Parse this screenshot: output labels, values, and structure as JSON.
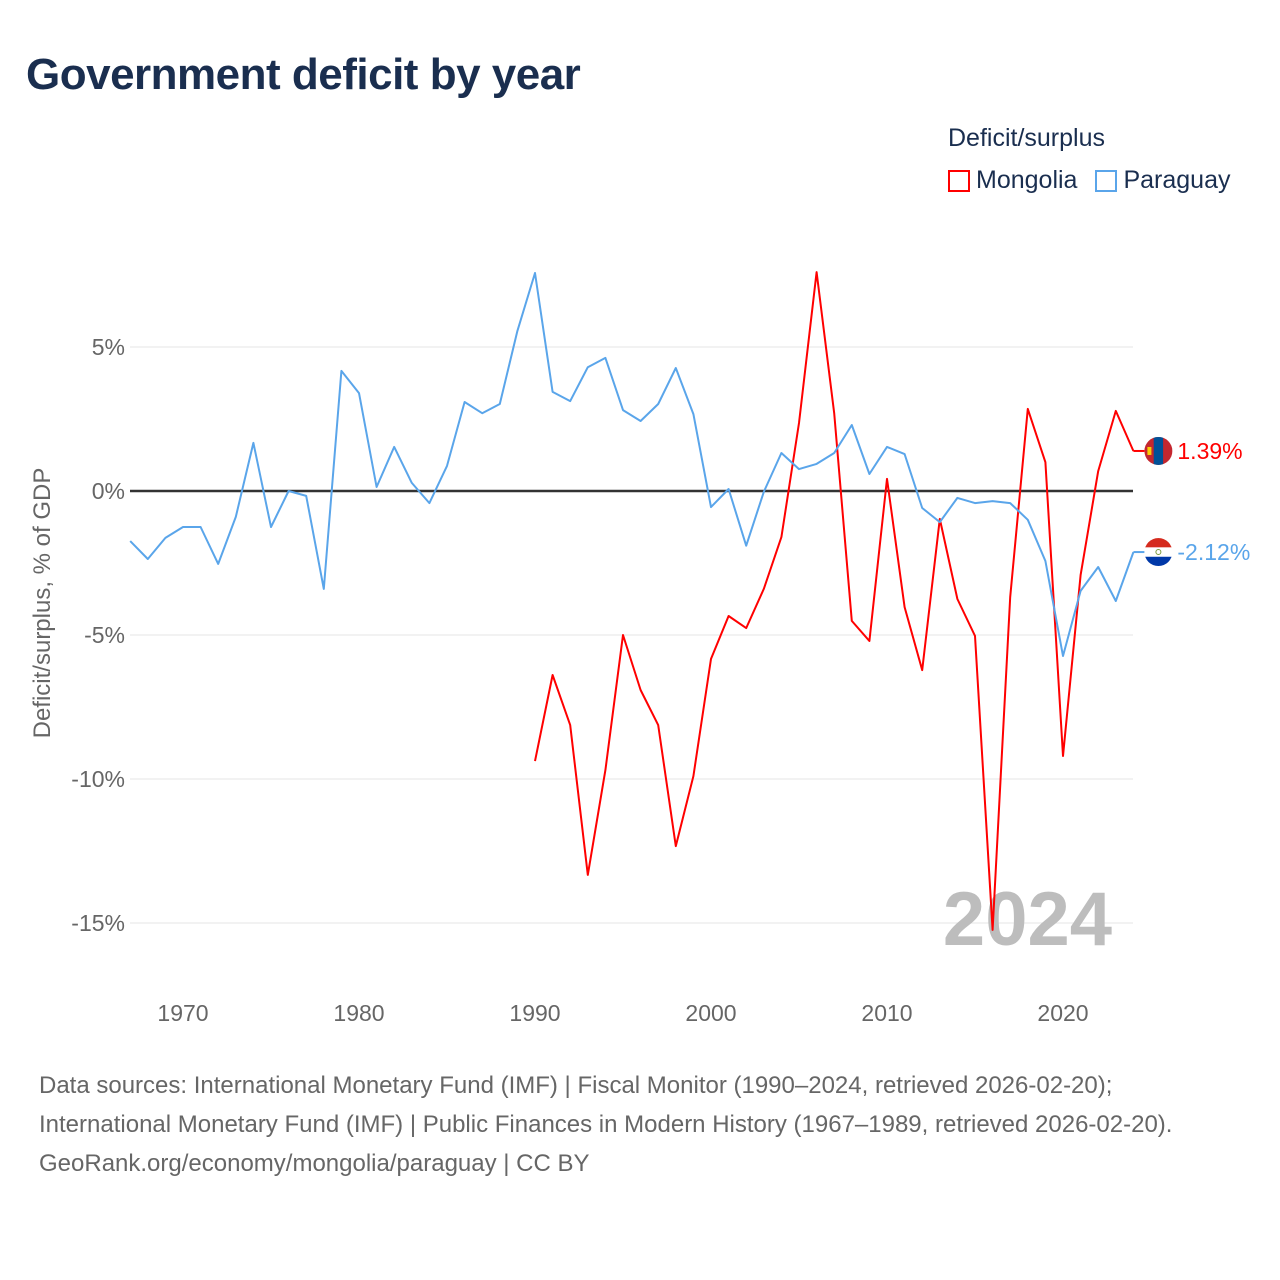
{
  "title": "Government deficit by year",
  "legend": {
    "title": "Deficit/surplus",
    "items": [
      {
        "label": "Mongolia",
        "color": "#ff0000"
      },
      {
        "label": "Paraguay",
        "color": "#5aa5ea"
      }
    ]
  },
  "year_watermark": "2024",
  "source": {
    "line1": "Data sources: International Monetary Fund (IMF) | Fiscal Monitor (1990–2024, retrieved 2026-02-20);",
    "line2": "International Monetary Fund (IMF) | Public Finances in Modern History (1967–1989, retrieved 2026-02-20).",
    "line3": "GeoRank.org/economy/mongolia/paraguay | CC BY"
  },
  "chart_data": {
    "type": "line",
    "title": "Government deficit by year",
    "xlabel": "",
    "ylabel": "Deficit/surplus, % of GDP",
    "xlim": [
      1967,
      2024
    ],
    "ylim": [
      -17,
      8
    ],
    "xticks": [
      1970,
      1980,
      1990,
      2000,
      2010,
      2020
    ],
    "xtick_labels": [
      "1970",
      "1980",
      "1990",
      "2000",
      "2010",
      "2020"
    ],
    "yticks": [
      5,
      0,
      -5,
      -10,
      -15
    ],
    "ytick_labels": [
      "5%",
      "0%",
      "-5%",
      "-10%",
      "-15%"
    ],
    "grid": true,
    "legend_position": "top-right",
    "series": [
      {
        "name": "Mongolia",
        "color": "#ff0000",
        "end_label": "1.39%",
        "x": [
          1990,
          1991,
          1992,
          1993,
          1994,
          1995,
          1996,
          1997,
          1998,
          1999,
          2000,
          2001,
          2002,
          2003,
          2004,
          2005,
          2006,
          2007,
          2008,
          2009,
          2010,
          2011,
          2012,
          2013,
          2014,
          2015,
          2016,
          2017,
          2018,
          2019,
          2020,
          2021,
          2022,
          2023,
          2024
        ],
        "values": [
          -9.38,
          -6.39,
          -8.13,
          -13.33,
          -9.69,
          -5.0,
          -6.91,
          -8.13,
          -12.33,
          -9.9,
          -5.83,
          -4.34,
          -4.76,
          -3.4,
          -1.6,
          2.36,
          7.6,
          2.7,
          -4.51,
          -5.21,
          0.42,
          -4.03,
          -6.22,
          -0.97,
          -3.75,
          -5.03,
          -15.24,
          -3.68,
          2.85,
          1.0,
          -9.2,
          -2.92,
          0.69,
          2.78,
          1.39
        ]
      },
      {
        "name": "Paraguay",
        "color": "#5aa5ea",
        "end_label": "-2.12%",
        "x": [
          1967,
          1968,
          1969,
          1970,
          1971,
          1972,
          1973,
          1974,
          1975,
          1976,
          1977,
          1978,
          1979,
          1980,
          1981,
          1982,
          1983,
          1984,
          1985,
          1986,
          1987,
          1988,
          1989,
          1990,
          1991,
          1992,
          1993,
          1994,
          1995,
          1996,
          1997,
          1998,
          1999,
          2000,
          2001,
          2002,
          2003,
          2004,
          2005,
          2006,
          2007,
          2008,
          2009,
          2010,
          2011,
          2012,
          2013,
          2014,
          2015,
          2016,
          2017,
          2018,
          2019,
          2020,
          2021,
          2022,
          2023,
          2024
        ],
        "values": [
          -1.74,
          -2.36,
          -1.63,
          -1.25,
          -1.25,
          -2.53,
          -0.9,
          1.67,
          -1.25,
          0,
          -0.17,
          -3.4,
          4.17,
          3.4,
          0.14,
          1.53,
          0.28,
          -0.42,
          0.87,
          3.09,
          2.7,
          3.02,
          5.56,
          7.57,
          3.44,
          3.12,
          4.3,
          4.62,
          2.81,
          2.43,
          3.02,
          4.27,
          2.67,
          -0.56,
          0.07,
          -1.9,
          -0.03,
          1.32,
          0.76,
          0.94,
          1.32,
          2.29,
          0.59,
          1.53,
          1.28,
          -0.59,
          -1.08,
          -0.24,
          -0.42,
          -0.35,
          -0.42,
          -1.0,
          -2.43,
          -5.73,
          -3.47,
          -2.64,
          -3.82,
          -2.12
        ]
      }
    ]
  }
}
